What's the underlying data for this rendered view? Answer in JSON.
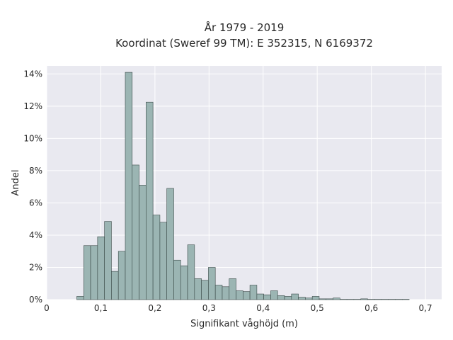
{
  "colors": {
    "plot_background": "#e9e9f0",
    "bar_fill": "#9bb5b3",
    "bar_edge": "#3a4a48",
    "grid": "#ffffff"
  },
  "chart_data": {
    "type": "bar",
    "title": "År 1979 - 2019",
    "subtitle": "Koordinat (Sweref 99 TM): E 352315, N 6169372",
    "xlabel": "Signifikant våghöjd (m)",
    "ylabel": "Andel",
    "xlim": [
      0,
      0.73
    ],
    "ylim": [
      0,
      14.5
    ],
    "grid": true,
    "legend": "none",
    "x_ticks": [
      0,
      0.1,
      0.2,
      0.3,
      0.4,
      0.5,
      0.6,
      0.7
    ],
    "x_tick_labels": [
      "0",
      "0,1",
      "0,2",
      "0,3",
      "0,4",
      "0,5",
      "0,6",
      "0,7"
    ],
    "y_ticks": [
      0,
      2,
      4,
      6,
      8,
      10,
      12,
      14
    ],
    "y_tick_labels": [
      "0%",
      "2%",
      "4%",
      "6%",
      "8%",
      "10%",
      "12%",
      "14%"
    ],
    "bin_start": 0.03,
    "bin_width": 0.0128,
    "values": [
      0.0,
      0.0,
      0.2,
      3.35,
      3.35,
      3.9,
      4.85,
      1.75,
      3.0,
      14.1,
      8.35,
      7.1,
      12.25,
      5.25,
      4.8,
      6.9,
      2.45,
      2.1,
      3.4,
      1.3,
      1.2,
      2.0,
      0.9,
      0.8,
      1.3,
      0.55,
      0.5,
      0.9,
      0.35,
      0.3,
      0.55,
      0.25,
      0.2,
      0.35,
      0.15,
      0.1,
      0.2,
      0.05,
      0.05,
      0.1,
      0.02,
      0.02,
      0.02,
      0.05,
      0.02,
      0.02,
      0.02,
      0.02,
      0.02,
      0.02
    ]
  }
}
